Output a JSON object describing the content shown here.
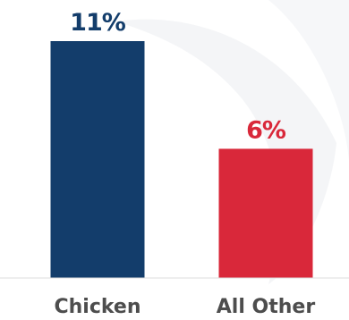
{
  "chart_data": {
    "type": "bar",
    "categories": [
      "Chicken",
      "All Other"
    ],
    "values": [
      11,
      6
    ],
    "value_labels": [
      "11%",
      "6%"
    ],
    "unit": "%",
    "colors": [
      "#133d6b",
      "#d9283a"
    ],
    "ylim": [
      0,
      11
    ],
    "grid": false,
    "legend": "none"
  },
  "style": {
    "background": "#ffffff",
    "decor_swirl_color": "#f4f5f7",
    "baseline_color": "#dddddd",
    "category_label_color": "#4d4d4d"
  }
}
